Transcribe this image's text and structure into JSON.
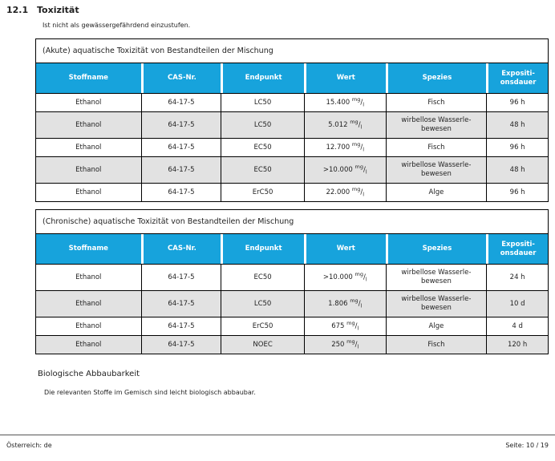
{
  "page": {
    "section_number": "12.1",
    "section_title": "Toxizität",
    "note": "Ist nicht als gewässergefährdend einzustufen.",
    "unit": {
      "sup": "mg",
      "sub": "l"
    },
    "tables": [
      {
        "title": "(Akute) aquatische Toxizität von Bestandteilen der Mischung",
        "headers": [
          "Stoffname",
          "CAS-Nr.",
          "Endpunkt",
          "Wert",
          "Spezies",
          "Expositi-\nonsdauer"
        ],
        "rows": [
          {
            "stoffname": "Ethanol",
            "cas": "64-17-5",
            "endpunkt": "LC50",
            "wert": "15.400",
            "spezies": "Fisch",
            "dauer": "96 h"
          },
          {
            "stoffname": "Ethanol",
            "cas": "64-17-5",
            "endpunkt": "LC50",
            "wert": "5.012",
            "spezies": "wirbellose Wasserle-\nbewesen",
            "dauer": "48 h"
          },
          {
            "stoffname": "Ethanol",
            "cas": "64-17-5",
            "endpunkt": "EC50",
            "wert": "12.700",
            "spezies": "Fisch",
            "dauer": "96 h"
          },
          {
            "stoffname": "Ethanol",
            "cas": "64-17-5",
            "endpunkt": "EC50",
            "wert": ">10.000",
            "spezies": "wirbellose Wasserle-\nbewesen",
            "dauer": "48 h"
          },
          {
            "stoffname": "Ethanol",
            "cas": "64-17-5",
            "endpunkt": "ErC50",
            "wert": "22.000",
            "spezies": "Alge",
            "dauer": "96 h"
          }
        ]
      },
      {
        "title": "(Chronische) aquatische Toxizität von Bestandteilen der Mischung",
        "headers": [
          "Stoffname",
          "CAS-Nr.",
          "Endpunkt",
          "Wert",
          "Spezies",
          "Expositi-\nonsdauer"
        ],
        "rows": [
          {
            "stoffname": "Ethanol",
            "cas": "64-17-5",
            "endpunkt": "EC50",
            "wert": ">10.000",
            "spezies": "wirbellose Wasserle-\nbewesen",
            "dauer": "24 h"
          },
          {
            "stoffname": "Ethanol",
            "cas": "64-17-5",
            "endpunkt": "LC50",
            "wert": "1.806",
            "spezies": "wirbellose Wasserle-\nbewesen",
            "dauer": "10 d"
          },
          {
            "stoffname": "Ethanol",
            "cas": "64-17-5",
            "endpunkt": "ErC50",
            "wert": "675",
            "spezies": "Alge",
            "dauer": "4 d"
          },
          {
            "stoffname": "Ethanol",
            "cas": "64-17-5",
            "endpunkt": "NOEC",
            "wert": "250",
            "spezies": "Fisch",
            "dauer": "120 h"
          }
        ]
      }
    ],
    "bio": {
      "heading": "Biologische Abbaubarkeit",
      "text": "Die relevanten Stoffe im Gemisch sind leicht biologisch abbaubar."
    },
    "footer": {
      "left": "Österreich: de",
      "right": "Seite: 10 / 19"
    },
    "colors": {
      "header_blue": "#17a3dc",
      "row_gray": "#e2e2e2",
      "footer_rule": "#555555"
    }
  }
}
